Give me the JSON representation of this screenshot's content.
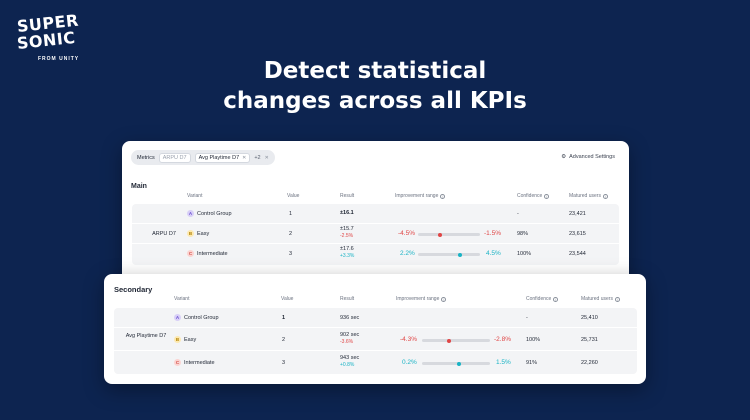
{
  "brand": {
    "line1": "SUPER",
    "line2": "SONIC",
    "sub": "FROM UNITY"
  },
  "headline": {
    "line1": "Detect statistical",
    "line2": "changes across all KPIs"
  },
  "toolbar": {
    "metrics_label": "Metrics",
    "chips": [
      "ARPU D7",
      "Avg Playtime D7"
    ],
    "more": "+2",
    "advanced_settings": "Advanced Settings"
  },
  "columns": {
    "variant": "Variant",
    "value": "Value",
    "result": "Result",
    "improvement_range": "Improvement range",
    "confidence": "Confidence",
    "matured_users": "Matured users"
  },
  "main": {
    "title": "Main",
    "metric": "ARPU D7",
    "rows": [
      {
        "badge": "A",
        "variant": "Control Group",
        "value": "1",
        "result": "±16.1",
        "delta": "",
        "range_low": "",
        "range_high": "",
        "confidence": "-",
        "users": "23,421"
      },
      {
        "badge": "B",
        "variant": "Easy",
        "value": "2",
        "result": "±15.7",
        "delta": "-2.5%",
        "range_low": "-4.5%",
        "range_high": "-1.5%",
        "confidence": "98%",
        "users": "23,615"
      },
      {
        "badge": "C",
        "variant": "Intermediate",
        "value": "3",
        "result": "±17.6",
        "delta": "+3.3%",
        "range_low": "2.2%",
        "range_high": "4.5%",
        "confidence": "100%",
        "users": "23,544"
      }
    ]
  },
  "secondary": {
    "title": "Secondary",
    "metric": "Avg Playtime D7",
    "rows": [
      {
        "badge": "A",
        "variant": "Control Group",
        "value": "1",
        "result": "936 sec",
        "delta": "",
        "range_low": "",
        "range_high": "",
        "confidence": "-",
        "users": "25,410"
      },
      {
        "badge": "B",
        "variant": "Easy",
        "value": "2",
        "result": "902 sec",
        "delta": "-3.6%",
        "range_low": "-4.3%",
        "range_high": "-2.8%",
        "confidence": "100%",
        "users": "25,731"
      },
      {
        "badge": "C",
        "variant": "Intermediate",
        "value": "3",
        "result": "943 sec",
        "delta": "+0.8%",
        "range_low": "0.2%",
        "range_high": "1.5%",
        "confidence": "91%",
        "users": "22,260"
      }
    ]
  },
  "colors": {
    "background": "#0d2450",
    "negative": "#e04646",
    "positive": "#19b3c5"
  }
}
